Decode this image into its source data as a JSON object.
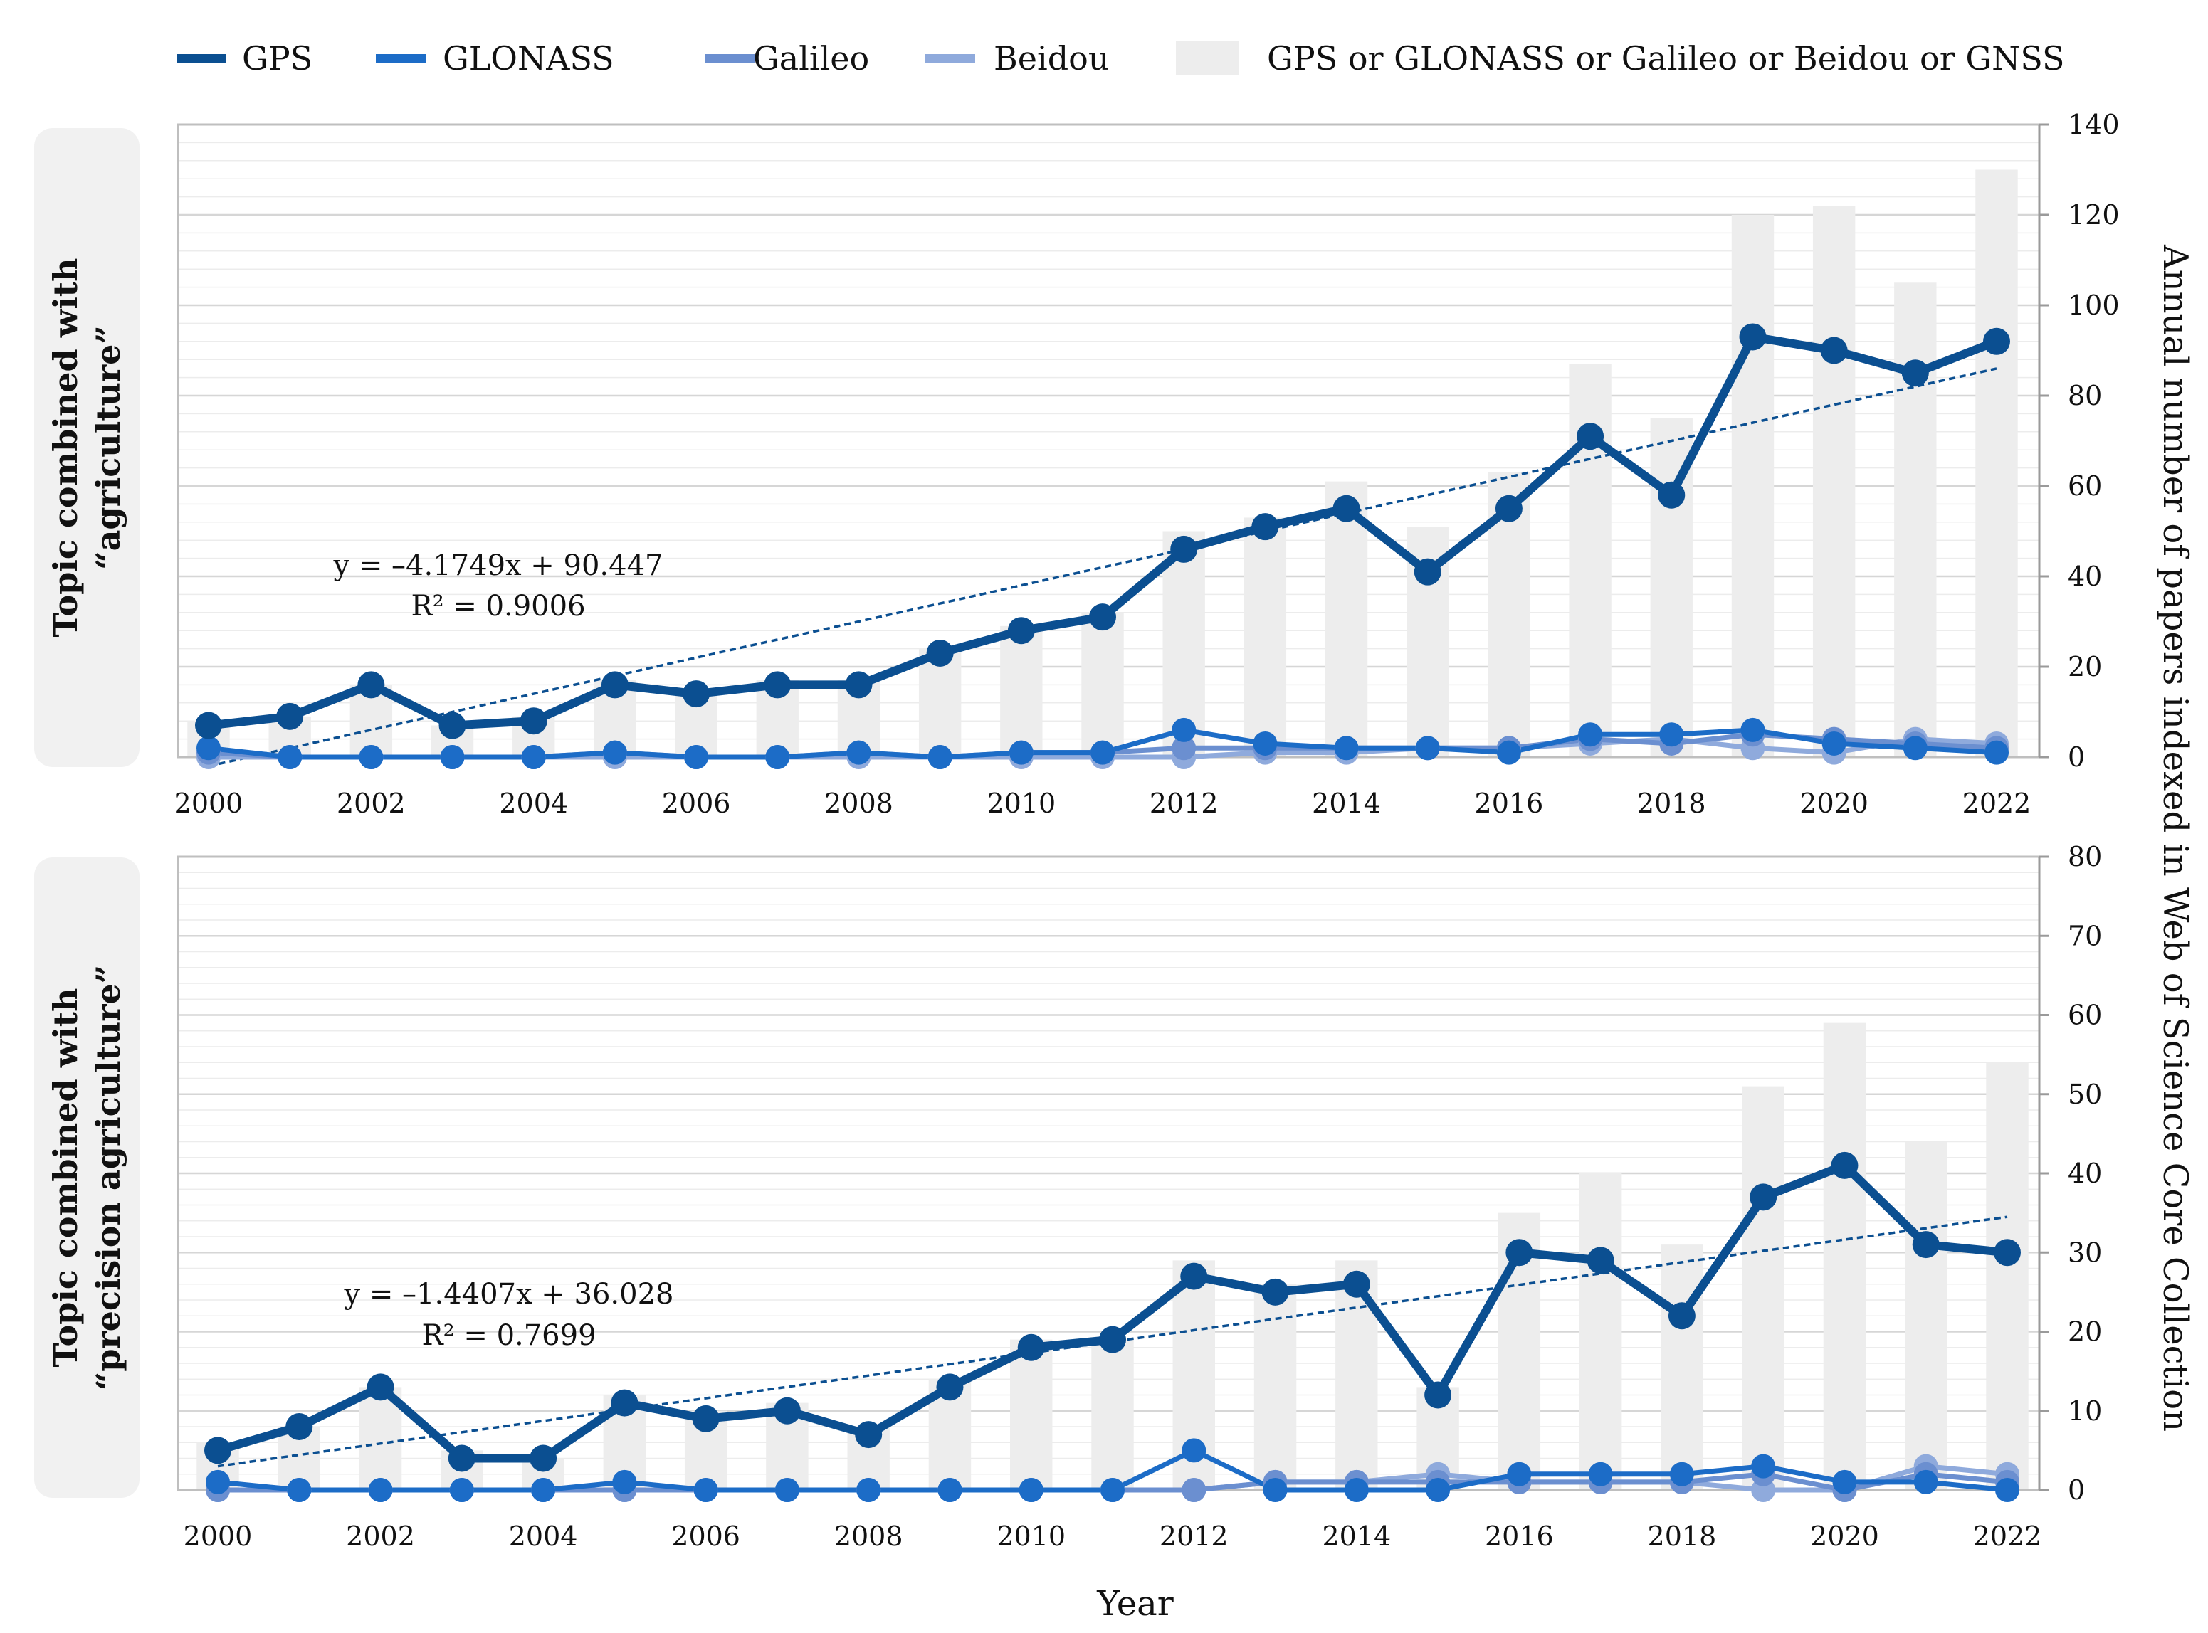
{
  "legend": [
    {
      "label": "GPS",
      "color": "#0B4F91",
      "kind": "line"
    },
    {
      "label": "GLONASS",
      "color": "#1C6CC7",
      "kind": "line"
    },
    {
      "label": "Galileo",
      "color": "#6B8FD0",
      "kind": "line"
    },
    {
      "label": "Beidou",
      "color": "#8FAADC",
      "kind": "line"
    },
    {
      "label": "GPS or GLONASS or Galileo or Beidou or GNSS",
      "color": "#EDEDED",
      "kind": "bar"
    }
  ],
  "x_axis_label": "Year",
  "y_axis_label": "Annual number of papers indexed in Web of Science Core Collection",
  "chart_data": [
    {
      "type": "bar+line",
      "panel_label_line1": "Topic combined with",
      "panel_label_line2": "“agriculture”",
      "x": [
        2000,
        2001,
        2002,
        2003,
        2004,
        2005,
        2006,
        2007,
        2008,
        2009,
        2010,
        2011,
        2012,
        2013,
        2014,
        2015,
        2016,
        2017,
        2018,
        2019,
        2020,
        2021,
        2022
      ],
      "x_tick_labels": [
        "2000",
        "2002",
        "2004",
        "2006",
        "2008",
        "2010",
        "2012",
        "2014",
        "2016",
        "2018",
        "2020",
        "2022"
      ],
      "ylim": [
        0,
        140
      ],
      "y_ticks": [
        0,
        20,
        40,
        60,
        80,
        100,
        120,
        140
      ],
      "bars": {
        "name": "GPS or GLONASS or Galileo or Beidou or GNSS",
        "values": [
          8,
          9,
          16,
          7,
          9,
          17,
          15,
          17,
          17,
          24,
          29,
          32,
          50,
          53,
          61,
          51,
          63,
          87,
          75,
          120,
          122,
          105,
          130
        ]
      },
      "series": [
        {
          "name": "GPS",
          "values": [
            7,
            9,
            16,
            7,
            8,
            16,
            14,
            16,
            16,
            23,
            28,
            31,
            46,
            51,
            55,
            41,
            55,
            71,
            58,
            93,
            90,
            85,
            92
          ]
        },
        {
          "name": "GLONASS",
          "values": [
            2,
            0,
            0,
            0,
            0,
            1,
            0,
            0,
            1,
            0,
            1,
            1,
            6,
            3,
            2,
            2,
            1,
            5,
            5,
            6,
            3,
            2,
            1
          ]
        },
        {
          "name": "Galileo",
          "values": [
            1,
            0,
            0,
            0,
            0,
            1,
            0,
            0,
            1,
            0,
            1,
            1,
            2,
            2,
            2,
            2,
            2,
            4,
            3,
            5,
            4,
            3,
            2
          ]
        },
        {
          "name": "Beidou",
          "values": [
            0,
            0,
            0,
            0,
            0,
            0,
            0,
            0,
            0,
            0,
            0,
            0,
            0,
            1,
            1,
            2,
            2,
            3,
            4,
            2,
            1,
            4,
            3
          ]
        }
      ],
      "trendline": {
        "series": "GPS",
        "start": [
          2000,
          -2
        ],
        "end": [
          2022,
          86
        ]
      },
      "equation": "y = –4.1749x + 90.447",
      "r_squared": "R² = 0.9006"
    },
    {
      "type": "bar+line",
      "panel_label_line1": "Topic combined with",
      "panel_label_line2": "“precision agriculture”",
      "x": [
        2000,
        2001,
        2002,
        2003,
        2004,
        2005,
        2006,
        2007,
        2008,
        2009,
        2010,
        2011,
        2012,
        2013,
        2014,
        2015,
        2016,
        2017,
        2018,
        2019,
        2020,
        2021,
        2022
      ],
      "x_tick_labels": [
        "2000",
        "2002",
        "2004",
        "2006",
        "2008",
        "2010",
        "2012",
        "2014",
        "2016",
        "2018",
        "2020",
        "2022"
      ],
      "ylim": [
        0,
        80
      ],
      "y_ticks": [
        0,
        10,
        20,
        30,
        40,
        50,
        60,
        70,
        80
      ],
      "bars": {
        "name": "GPS or GLONASS or Galileo or Beidou or GNSS",
        "values": [
          6,
          8,
          13,
          5,
          4,
          12,
          10,
          11,
          8,
          14,
          19,
          19,
          29,
          26,
          29,
          13,
          35,
          40,
          31,
          51,
          59,
          44,
          54
        ]
      },
      "series": [
        {
          "name": "GPS",
          "values": [
            5,
            8,
            13,
            4,
            4,
            11,
            9,
            10,
            7,
            13,
            18,
            19,
            27,
            25,
            26,
            12,
            30,
            29,
            22,
            37,
            41,
            31,
            30
          ]
        },
        {
          "name": "GLONASS",
          "values": [
            1,
            0,
            0,
            0,
            0,
            1,
            0,
            0,
            0,
            0,
            0,
            0,
            5,
            0,
            0,
            0,
            2,
            2,
            2,
            3,
            1,
            1,
            0
          ]
        },
        {
          "name": "Galileo",
          "values": [
            0,
            0,
            0,
            0,
            0,
            0,
            0,
            0,
            0,
            0,
            0,
            0,
            0,
            1,
            1,
            1,
            1,
            1,
            1,
            2,
            0,
            2,
            1
          ]
        },
        {
          "name": "Beidou",
          "values": [
            0,
            0,
            0,
            0,
            0,
            0,
            0,
            0,
            0,
            0,
            0,
            0,
            0,
            1,
            1,
            2,
            1,
            1,
            1,
            0,
            0,
            3,
            2
          ]
        }
      ],
      "trendline": {
        "series": "GPS",
        "start": [
          2000,
          3
        ],
        "end": [
          2022,
          34.5
        ]
      },
      "equation": "y = –1.4407x + 36.028",
      "r_squared": "R² = 0.7699"
    }
  ]
}
